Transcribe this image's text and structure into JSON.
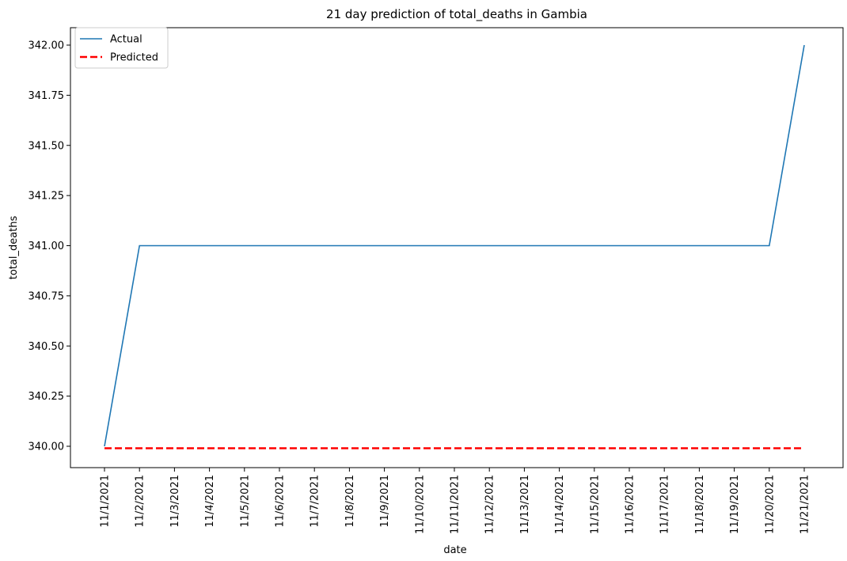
{
  "chart_data": {
    "type": "line",
    "title": "21 day prediction of total_deaths in Gambia",
    "xlabel": "date",
    "ylabel": "total_deaths",
    "categories": [
      "11/1/2021",
      "11/2/2021",
      "11/3/2021",
      "11/4/2021",
      "11/5/2021",
      "11/6/2021",
      "11/7/2021",
      "11/8/2021",
      "11/9/2021",
      "11/10/2021",
      "11/11/2021",
      "11/12/2021",
      "11/13/2021",
      "11/14/2021",
      "11/15/2021",
      "11/16/2021",
      "11/17/2021",
      "11/18/2021",
      "11/19/2021",
      "11/20/2021",
      "11/21/2021"
    ],
    "series": [
      {
        "name": "Actual",
        "color": "#1f77b4",
        "style": "solid",
        "values": [
          340,
          341,
          341,
          341,
          341,
          341,
          341,
          341,
          341,
          341,
          341,
          341,
          341,
          341,
          341,
          341,
          341,
          341,
          341,
          341,
          342
        ]
      },
      {
        "name": "Predicted",
        "color": "#ff0000",
        "style": "dashed",
        "values": [
          339.99,
          339.99,
          339.99,
          339.99,
          339.99,
          339.99,
          339.99,
          339.99,
          339.99,
          339.99,
          339.99,
          339.99,
          339.99,
          339.99,
          339.99,
          339.99,
          339.99,
          339.99,
          339.99,
          339.99,
          339.99
        ]
      }
    ],
    "ylim": [
      339.9,
      342.1
    ],
    "yticks": [
      "340.00",
      "340.25",
      "340.50",
      "340.75",
      "341.00",
      "341.25",
      "341.50",
      "341.75",
      "342.00"
    ],
    "grid": false,
    "legend_position": "top-left"
  }
}
